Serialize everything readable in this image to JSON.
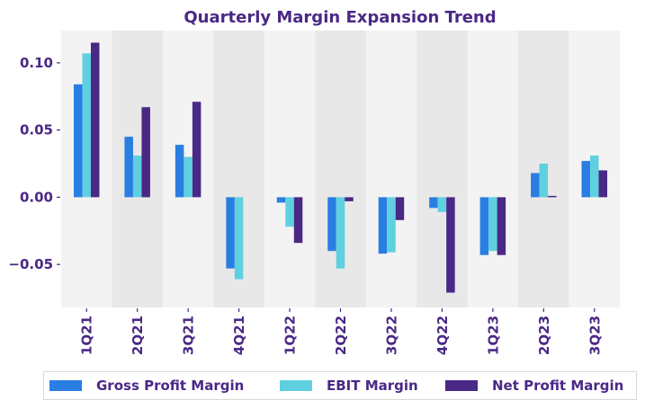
{
  "colors": {
    "text": "#4a2886",
    "band_light": "#f3f3f3",
    "band_dark": "#e8e8e8",
    "legend_border": "#d8d8d8"
  },
  "chart_data": {
    "type": "bar",
    "title": "Quarterly Margin Expansion Trend",
    "xlabel": "",
    "ylabel": "",
    "ylim": [
      -0.082,
      0.124
    ],
    "yticks": [
      -0.05,
      0.0,
      0.05,
      0.1
    ],
    "ytick_labels": [
      "−0.05",
      "0.00",
      "0.05",
      "0.10"
    ],
    "grid": false,
    "alternating_bands": true,
    "legend_position": "bottom",
    "categories": [
      "1Q21",
      "2Q21",
      "3Q21",
      "4Q21",
      "1Q22",
      "2Q22",
      "3Q22",
      "4Q22",
      "1Q23",
      "2Q23",
      "3Q23"
    ],
    "series": [
      {
        "name": "Gross Profit Margin",
        "color": "#2a7de1",
        "values": [
          0.084,
          0.045,
          0.039,
          -0.053,
          -0.004,
          -0.04,
          -0.042,
          -0.008,
          -0.043,
          0.018,
          0.027
        ]
      },
      {
        "name": "EBIT Margin",
        "color": "#5fd0e0",
        "values": [
          0.107,
          0.031,
          0.03,
          -0.061,
          -0.022,
          -0.053,
          -0.041,
          -0.011,
          -0.04,
          0.025,
          0.031
        ]
      },
      {
        "name": "Net Profit Margin",
        "color": "#4a2886",
        "values": [
          0.115,
          0.067,
          0.071,
          0.0,
          -0.034,
          -0.003,
          -0.017,
          -0.071,
          -0.043,
          0.001,
          0.02
        ]
      }
    ]
  }
}
